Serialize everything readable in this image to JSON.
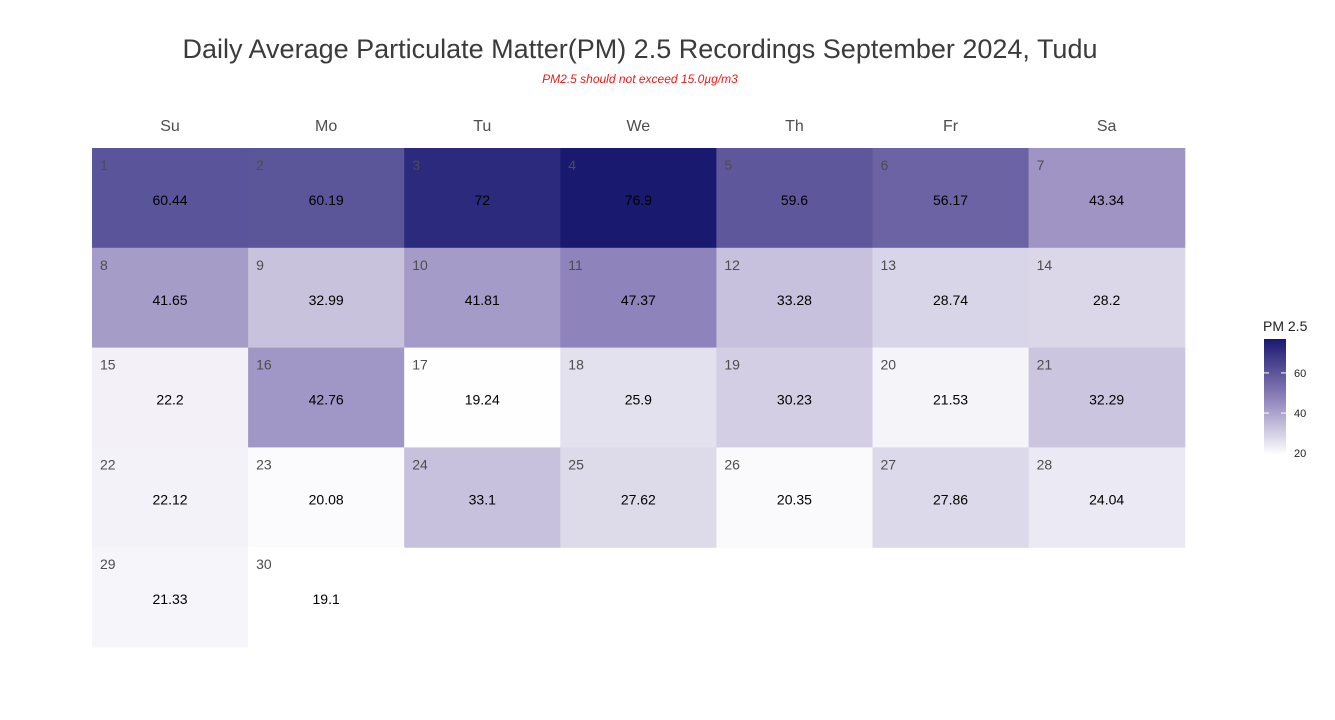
{
  "chart_data": {
    "type": "heatmap",
    "title": "Daily Average Particulate Matter(PM) 2.5 Recordings September 2024,  Tudu",
    "subtitle": "PM2.5 should not exceed 15.0µg/m3",
    "weekdays": [
      "Su",
      "Mo",
      "Tu",
      "We",
      "Th",
      "Fr",
      "Sa"
    ],
    "first_weekday_index": 0,
    "days": [
      {
        "day": "1",
        "value": 60.44
      },
      {
        "day": "2",
        "value": 60.19
      },
      {
        "day": "3",
        "value": 72
      },
      {
        "day": "4",
        "value": 76.9
      },
      {
        "day": "5",
        "value": 59.6
      },
      {
        "day": "6",
        "value": 56.17
      },
      {
        "day": "7",
        "value": 43.34
      },
      {
        "day": "8",
        "value": 41.65
      },
      {
        "day": "9",
        "value": 32.99
      },
      {
        "day": "10",
        "value": 41.81
      },
      {
        "day": "11",
        "value": 47.37
      },
      {
        "day": "12",
        "value": 33.28
      },
      {
        "day": "13",
        "value": 28.74
      },
      {
        "day": "14",
        "value": 28.2
      },
      {
        "day": "15",
        "value": 22.2
      },
      {
        "day": "16",
        "value": 42.76
      },
      {
        "day": "17",
        "value": 19.24
      },
      {
        "day": "18",
        "value": 25.9
      },
      {
        "day": "19",
        "value": 30.23
      },
      {
        "day": "20",
        "value": 21.53
      },
      {
        "day": "21",
        "value": 32.29
      },
      {
        "day": "22",
        "value": 22.12
      },
      {
        "day": "23",
        "value": 20.08
      },
      {
        "day": "24",
        "value": 33.1
      },
      {
        "day": "25",
        "value": 27.62
      },
      {
        "day": "26",
        "value": 20.35
      },
      {
        "day": "27",
        "value": 27.86
      },
      {
        "day": "28",
        "value": 24.04
      },
      {
        "day": "29",
        "value": 21.33
      },
      {
        "day": "30",
        "value": 19.1
      }
    ],
    "legend": {
      "title": "PM 2.5",
      "ticks": [
        "20",
        "40",
        "60"
      ],
      "tick_values": [
        20,
        40,
        60
      ],
      "range": [
        19.1,
        76.9
      ],
      "placement": "right"
    },
    "colors": {
      "low": "#ffffff",
      "mid": "#8c80b9",
      "high": "#191970",
      "title": "#3b3b3b",
      "subtitle": "#e3201b"
    }
  }
}
